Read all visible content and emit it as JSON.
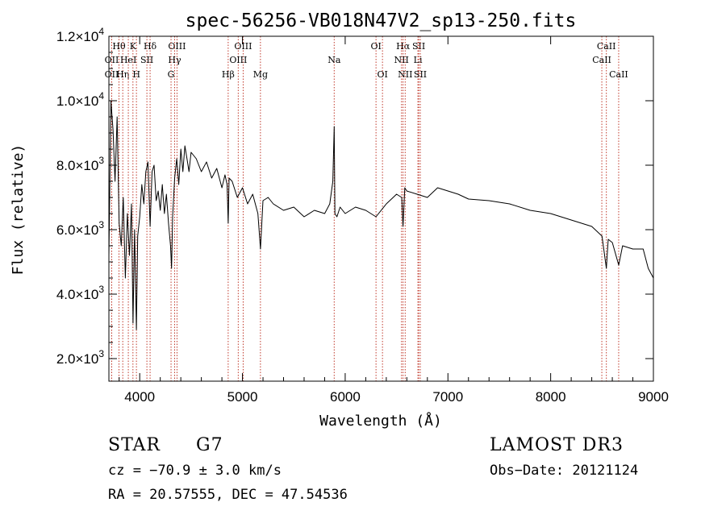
{
  "chart_data": {
    "type": "line",
    "title": "spec-56256-VB018N47V2_sp13-250.fits",
    "xlabel": "Wavelength (Å)",
    "ylabel": "Flux (relative)",
    "xlim": [
      3700,
      9000
    ],
    "ylim": [
      1300,
      12000
    ],
    "x_ticks": [
      4000,
      5000,
      6000,
      7000,
      8000,
      9000
    ],
    "x_tick_labels": [
      "4000",
      "5000",
      "6000",
      "7000",
      "8000",
      "9000"
    ],
    "y_ticks": [
      2000,
      4000,
      6000,
      8000,
      10000,
      12000
    ],
    "y_tick_labels": [
      {
        "mant": "2.0",
        "exp": "3"
      },
      {
        "mant": "4.0",
        "exp": "3"
      },
      {
        "mant": "6.0",
        "exp": "3"
      },
      {
        "mant": "8.0",
        "exp": "3"
      },
      {
        "mant": "1.0",
        "exp": "4"
      },
      {
        "mant": "1.2",
        "exp": "4"
      }
    ],
    "series": [
      {
        "name": "flux",
        "x": [
          3700,
          3720,
          3740,
          3760,
          3780,
          3800,
          3820,
          3840,
          3860,
          3880,
          3900,
          3920,
          3935,
          3950,
          3968,
          3980,
          4000,
          4020,
          4040,
          4060,
          4080,
          4101,
          4120,
          4140,
          4160,
          4180,
          4200,
          4220,
          4240,
          4260,
          4280,
          4300,
          4310,
          4320,
          4340,
          4360,
          4380,
          4400,
          4420,
          4440,
          4460,
          4480,
          4500,
          4550,
          4600,
          4650,
          4700,
          4750,
          4800,
          4830,
          4850,
          4861,
          4870,
          4900,
          4950,
          5000,
          5050,
          5100,
          5150,
          5175,
          5200,
          5250,
          5300,
          5400,
          5500,
          5600,
          5700,
          5800,
          5850,
          5880,
          5893,
          5900,
          5920,
          5950,
          6000,
          6100,
          6200,
          6300,
          6400,
          6500,
          6550,
          6563,
          6580,
          6600,
          6700,
          6800,
          6900,
          7000,
          7100,
          7200,
          7400,
          7600,
          7800,
          8000,
          8200,
          8400,
          8500,
          8542,
          8560,
          8600,
          8662,
          8700,
          8800,
          8900,
          8950,
          9000
        ],
        "y": [
          5200,
          10000,
          9100,
          7500,
          9500,
          6200,
          5500,
          7000,
          4500,
          6500,
          5200,
          6800,
          3100,
          6000,
          2900,
          5800,
          6400,
          7400,
          6800,
          7800,
          8100,
          6100,
          7800,
          8000,
          6900,
          7200,
          6600,
          7400,
          6500,
          7100,
          6200,
          5500,
          4800,
          6400,
          7600,
          8200,
          7400,
          8500,
          7800,
          8600,
          8200,
          7800,
          8400,
          8200,
          7800,
          8100,
          7600,
          7900,
          7300,
          7700,
          7400,
          6200,
          7600,
          7500,
          7000,
          7300,
          6800,
          7100,
          6500,
          5400,
          6900,
          7000,
          6800,
          6600,
          6700,
          6400,
          6600,
          6500,
          6800,
          7500,
          9200,
          6500,
          6400,
          6700,
          6500,
          6700,
          6600,
          6400,
          6800,
          7100,
          7000,
          6100,
          7300,
          7200,
          7100,
          7000,
          7300,
          7200,
          7100,
          6950,
          6900,
          6800,
          6600,
          6500,
          6300,
          6100,
          5800,
          4800,
          5700,
          5600,
          4900,
          5500,
          5400,
          5400,
          4800,
          4500
        ]
      }
    ],
    "lines": [
      {
        "label": "Hθ",
        "w": 3798,
        "row": 0
      },
      {
        "label": "OII",
        "w": 3727,
        "row": 1
      },
      {
        "label": "OII",
        "w": 3727,
        "row": 2
      },
      {
        "label": "Hη",
        "w": 3835,
        "row": 2
      },
      {
        "label": "HeI",
        "w": 3889,
        "row": 1
      },
      {
        "label": "K",
        "w": 3934,
        "row": 0
      },
      {
        "label": "H",
        "w": 3968,
        "row": 2
      },
      {
        "label": "SII",
        "w": 4070,
        "row": 1
      },
      {
        "label": "Hδ",
        "w": 4101,
        "row": 0
      },
      {
        "label": "OIII",
        "w": 4363,
        "row": 0
      },
      {
        "label": "Hγ",
        "w": 4340,
        "row": 1
      },
      {
        "label": "G",
        "w": 4305,
        "row": 2
      },
      {
        "label": "Hβ",
        "w": 4861,
        "row": 2
      },
      {
        "label": "OIII",
        "w": 5007,
        "row": 0
      },
      {
        "label": "OIII",
        "w": 4959,
        "row": 1
      },
      {
        "label": "Mg",
        "w": 5175,
        "row": 2
      },
      {
        "label": "Na",
        "w": 5893,
        "row": 1
      },
      {
        "label": "OI",
        "w": 6300,
        "row": 0
      },
      {
        "label": "OI",
        "w": 6363,
        "row": 2
      },
      {
        "label": "Hα",
        "w": 6563,
        "row": 0
      },
      {
        "label": "SII",
        "w": 6716,
        "row": 0
      },
      {
        "label": "NII",
        "w": 6548,
        "row": 1
      },
      {
        "label": "Li",
        "w": 6708,
        "row": 1
      },
      {
        "label": "NII",
        "w": 6584,
        "row": 2
      },
      {
        "label": "SII",
        "w": 6731,
        "row": 2
      },
      {
        "label": "CaII",
        "w": 8542,
        "row": 0
      },
      {
        "label": "CaII",
        "w": 8498,
        "row": 1
      },
      {
        "label": "CaII",
        "w": 8662,
        "row": 2
      }
    ]
  },
  "info": {
    "object_class": "STAR",
    "subclass": "G7",
    "survey": "LAMOST DR3",
    "cz": "cz = −70.9 ± 3.0 km/s",
    "obs_date": "Obs−Date: 20121124",
    "coords": "RA =  20.57555, DEC =  47.54536"
  }
}
